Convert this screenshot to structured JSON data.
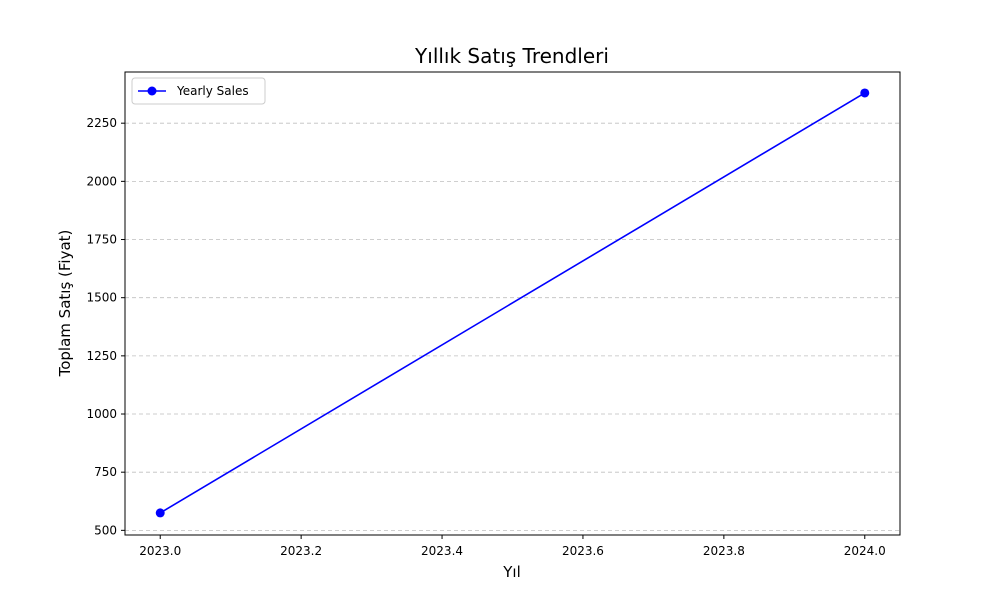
{
  "chart_data": {
    "type": "line",
    "title": "Yıllık Satış Trendleri",
    "xlabel": "Yıl",
    "ylabel": "Toplam Satış (Fiyat)",
    "xlim": [
      2022.95,
      2024.05
    ],
    "ylim": [
      480,
      2470
    ],
    "x_ticks": [
      "2023.0",
      "2023.2",
      "2023.4",
      "2023.6",
      "2023.8",
      "2024.0"
    ],
    "y_ticks": [
      "500",
      "750",
      "1000",
      "1250",
      "1500",
      "1750",
      "2000",
      "2250"
    ],
    "grid": "y-dashed",
    "legend": "top-left",
    "series": [
      {
        "name": "Yearly Sales",
        "color": "#0000ff",
        "marker": "circle",
        "x": [
          2023.0,
          2024.0
        ],
        "y": [
          575,
          2380
        ]
      }
    ]
  }
}
